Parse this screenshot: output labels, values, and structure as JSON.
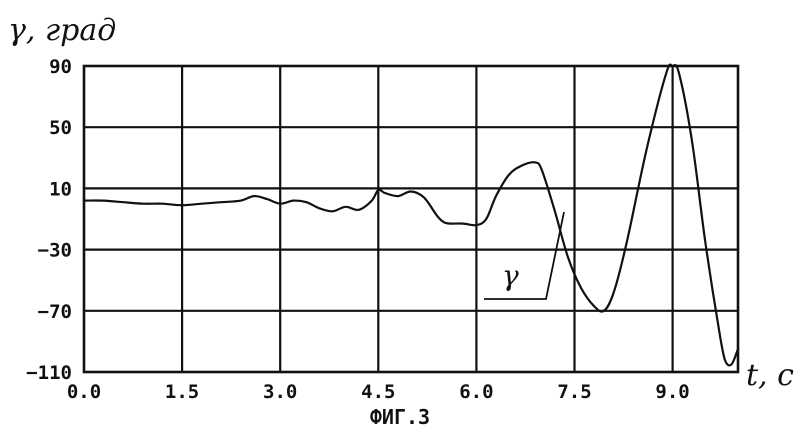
{
  "chart_data": {
    "type": "line",
    "ylabel": "γ, град",
    "xlabel": "t, c",
    "caption": "ФИГ.3",
    "grid": true,
    "xlim": [
      0.0,
      10.0
    ],
    "ylim": [
      -110,
      90
    ],
    "x_ticks": [
      "0.0",
      "1.5",
      "3.0",
      "4.5",
      "6.0",
      "7.5",
      "9.0"
    ],
    "x_tick_values": [
      0.0,
      1.5,
      3.0,
      4.5,
      6.0,
      7.5,
      9.0
    ],
    "y_ticks": [
      "90",
      "50",
      "10",
      "-30",
      "-70",
      "-110"
    ],
    "y_tick_values": [
      90,
      50,
      10,
      -30,
      -70,
      -110
    ],
    "series": [
      {
        "name": "γ",
        "x": [
          0.0,
          0.3,
          0.6,
          0.9,
          1.2,
          1.5,
          1.8,
          2.1,
          2.4,
          2.6,
          2.8,
          3.0,
          3.2,
          3.4,
          3.6,
          3.8,
          4.0,
          4.2,
          4.4,
          4.5,
          4.6,
          4.8,
          5.0,
          5.2,
          5.4,
          5.5,
          5.6,
          5.8,
          6.0,
          6.15,
          6.3,
          6.5,
          6.7,
          6.9,
          7.0,
          7.2,
          7.4,
          7.6,
          7.8,
          7.95,
          8.1,
          8.3,
          8.6,
          8.9,
          9.0,
          9.1,
          9.3,
          9.5,
          9.7,
          9.8,
          9.9,
          10.0
        ],
        "y": [
          2,
          2,
          1,
          0,
          0,
          -1,
          0,
          1,
          2,
          5,
          3,
          0,
          2,
          1,
          -3,
          -5,
          -2,
          -4,
          2,
          9,
          7,
          5,
          8,
          4,
          -8,
          -12,
          -13,
          -13,
          -14,
          -10,
          5,
          19,
          25,
          27,
          22,
          -5,
          -35,
          -55,
          -67,
          -70,
          -58,
          -25,
          35,
          85,
          90,
          85,
          40,
          -25,
          -80,
          -102,
          -105,
          -95
        ]
      }
    ],
    "annotations": [
      {
        "text": "γ",
        "target_series": "γ"
      }
    ]
  }
}
